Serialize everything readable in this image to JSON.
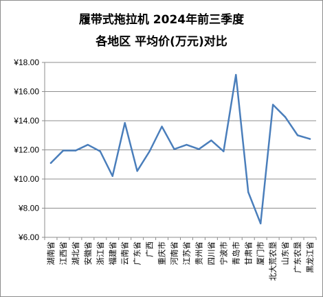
{
  "chart_data": {
    "type": "line",
    "title": "履带式拖拉机  2024年前三季度",
    "subtitle": "各地区 平均价(万元)对比",
    "xlabel": "",
    "ylabel": "",
    "ylim": [
      6,
      18
    ],
    "y_ticks": [
      "¥6.00",
      "¥8.00",
      "¥10.00",
      "¥12.00",
      "¥14.00",
      "¥16.00",
      "¥18.00"
    ],
    "grid": true,
    "legend": "none",
    "line_color": "#4a7ebb",
    "categories": [
      "湖南省",
      "江西省",
      "湖北省",
      "安徽省",
      "浙江省",
      "福建省",
      "云南省",
      "广东省",
      "广西",
      "重庆市",
      "河南省",
      "江苏省",
      "贵州省",
      "四川省",
      "宁波市",
      "青岛市",
      "甘肃省",
      "厦门市",
      "北大荒农垦",
      "山东省",
      "广东农垦",
      "黑龙江省"
    ],
    "values": [
      11.1,
      11.95,
      11.95,
      12.35,
      11.9,
      10.2,
      13.85,
      10.55,
      11.9,
      13.6,
      12.05,
      12.35,
      12.05,
      12.65,
      11.9,
      17.15,
      9.1,
      6.95,
      15.1,
      14.25,
      13.0,
      12.75
    ]
  }
}
